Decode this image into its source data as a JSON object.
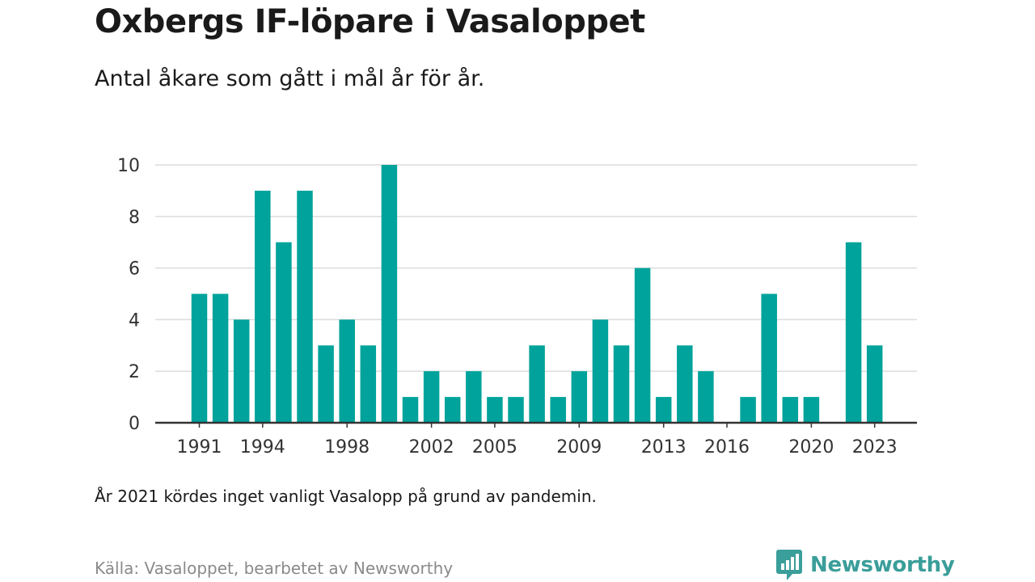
{
  "title": "Oxbergs IF-löpare i Vasaloppet",
  "subtitle": "Antal åkare som gått i mål år för år.",
  "note": "År 2021 kördes inget vanligt Vasalopp på grund av pandemin.",
  "source": "Källa: Vasaloppet, bearbetet av Newsworthy",
  "brand": "Newsworthy",
  "colors": {
    "bar": "#00a39b",
    "brand": "#3a9e9a"
  },
  "chart_data": {
    "type": "bar",
    "title": "",
    "xlabel": "",
    "ylabel": "",
    "ylim": [
      0,
      10
    ],
    "grid": true,
    "y_ticks": [
      0,
      2,
      4,
      6,
      8,
      10
    ],
    "x_tick_labels": [
      1991,
      1994,
      1998,
      2002,
      2005,
      2009,
      2013,
      2016,
      2020,
      2023
    ],
    "categories": [
      1991,
      1992,
      1993,
      1994,
      1995,
      1996,
      1997,
      1998,
      1999,
      2000,
      2001,
      2002,
      2003,
      2004,
      2005,
      2006,
      2007,
      2008,
      2009,
      2010,
      2011,
      2012,
      2013,
      2014,
      2015,
      2016,
      2017,
      2018,
      2019,
      2020,
      2021,
      2022,
      2023
    ],
    "values": [
      5,
      5,
      4,
      9,
      7,
      9,
      3,
      4,
      3,
      10,
      1,
      2,
      1,
      2,
      1,
      1,
      3,
      1,
      2,
      4,
      3,
      6,
      1,
      3,
      2,
      0,
      1,
      5,
      1,
      1,
      0,
      7,
      3
    ]
  }
}
